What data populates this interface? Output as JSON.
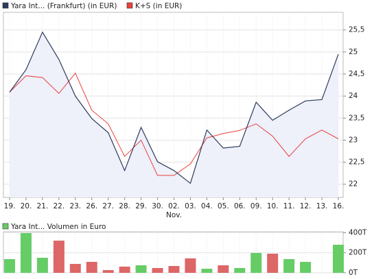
{
  "chart_data": [
    {
      "type": "line",
      "categories": [
        "19.",
        "20.",
        "21.",
        "22.",
        "23.",
        "26.",
        "27.",
        "28.",
        "29.",
        "30.",
        "02.",
        "03.",
        "04.",
        "05.",
        "06.",
        "09.",
        "10.",
        "11.",
        "12.",
        "13.",
        "16."
      ],
      "x_annotation": "Nov.",
      "series": [
        {
          "name": "Yara Int... (Frankfurt) (in EUR)",
          "color": "#2e3a5c",
          "fill": "#eef0fa",
          "values": [
            24.09,
            24.6,
            25.45,
            24.83,
            24.0,
            23.49,
            23.17,
            22.31,
            23.29,
            22.51,
            22.31,
            22.02,
            23.23,
            22.82,
            22.86,
            23.86,
            23.45,
            23.68,
            23.89,
            23.92,
            24.95
          ]
        },
        {
          "name": "K+S (in EUR)",
          "color": "#e8413c",
          "values": [
            24.09,
            24.46,
            24.42,
            24.06,
            24.52,
            23.68,
            23.37,
            22.63,
            23.0,
            22.2,
            22.2,
            22.46,
            23.05,
            23.15,
            23.22,
            23.37,
            23.09,
            22.63,
            23.03,
            23.23,
            23.03
          ]
        }
      ],
      "ylim": [
        21.7,
        25.9
      ],
      "yticks": [
        {
          "value": 22,
          "label": "22"
        },
        {
          "value": 22.5,
          "label": "22,5"
        },
        {
          "value": 23,
          "label": "23"
        },
        {
          "value": 23.5,
          "label": "23,5"
        },
        {
          "value": 24,
          "label": "24"
        },
        {
          "value": 24.5,
          "label": "24,5"
        },
        {
          "value": 25,
          "label": "25"
        },
        {
          "value": 25.5,
          "label": "25,5"
        }
      ],
      "grid": true
    },
    {
      "type": "bar",
      "series": [
        {
          "name": "Yara Int... Volumen in Euro",
          "color": "#66cc66",
          "values": [
            137,
            396,
            150,
            321,
            89,
            109,
            27,
            62,
            75,
            48,
            68,
            144,
            41,
            75,
            48,
            198,
            191,
            137,
            109,
            null,
            280
          ],
          "colors": [
            "#66cc66",
            "#66cc66",
            "#66cc66",
            "#dd6666",
            "#dd6666",
            "#dd6666",
            "#dd6666",
            "#dd6666",
            "#66cc66",
            "#dd6666",
            "#dd6666",
            "#dd6666",
            "#66cc66",
            "#dd6666",
            "#66cc66",
            "#66cc66",
            "#dd6666",
            "#66cc66",
            "#66cc66",
            "#66cc66",
            "#66cc66"
          ]
        }
      ],
      "ylim": [
        0,
        410
      ],
      "yticks": [
        {
          "value": 0,
          "label": "0T"
        },
        {
          "value": 200,
          "label": "200T"
        },
        {
          "value": 400,
          "label": "400T"
        }
      ],
      "grid": true
    }
  ]
}
